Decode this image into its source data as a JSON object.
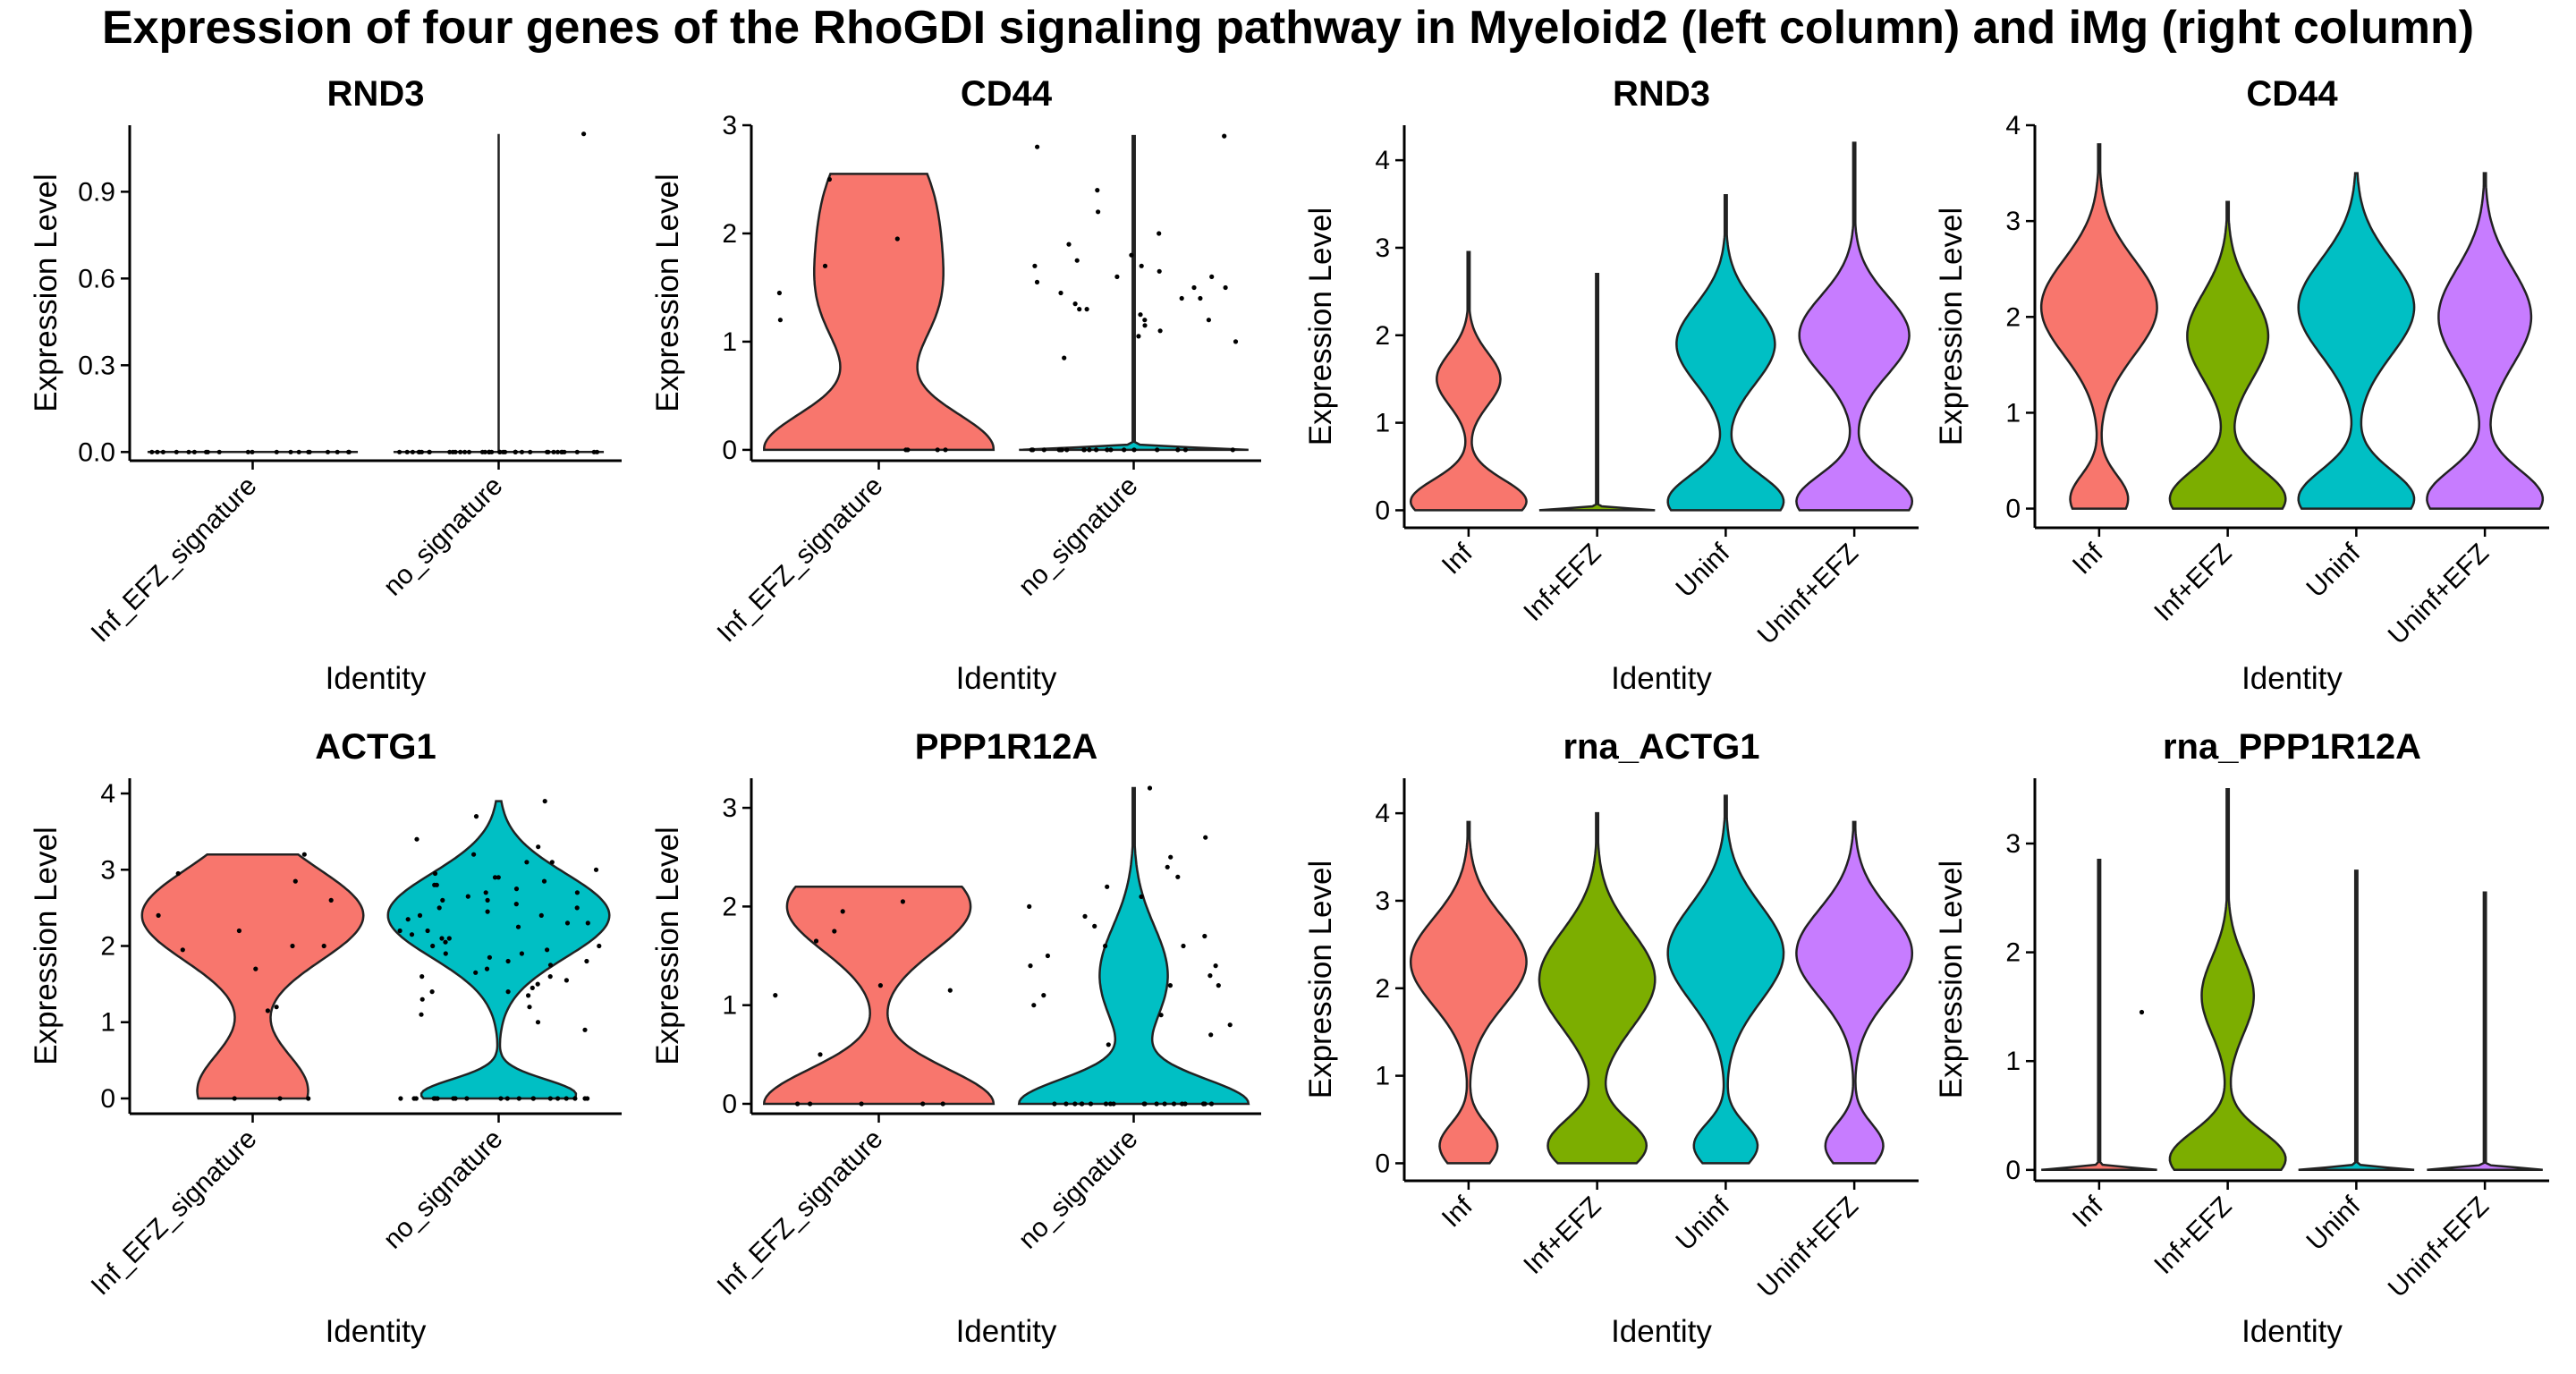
{
  "title": "Expression of four genes of the RhoGDI signaling pathway in Myeloid2 (left column) and iMg (right column)",
  "colors": {
    "Inf_EFZ_signature": "#F8766D",
    "no_signature": "#00BFC4",
    "Inf": "#F8766D",
    "Inf+EFZ": "#7CAE00",
    "Uninf": "#00BFC4",
    "Uninf+EFZ": "#C77CFF"
  },
  "chart_data": [
    {
      "type": "violin",
      "title": "RND3",
      "xlabel": "Identity",
      "ylabel": "Expression Level",
      "categories": [
        "Inf_EFZ_signature",
        "no_signature"
      ],
      "ylim": [
        -0.03,
        1.13
      ],
      "yticks": [
        "0.0",
        "0.3",
        "0.6",
        "0.9"
      ],
      "series": [
        {
          "category": "Inf_EFZ_signature",
          "max": 0,
          "modes": [],
          "points": [
            0,
            0,
            0,
            0,
            0,
            0,
            0,
            0,
            0,
            0,
            0,
            0,
            0,
            0,
            0,
            0,
            0,
            0,
            0,
            0
          ]
        },
        {
          "category": "no_signature",
          "max": 1.1,
          "modes": [],
          "points": [
            1.1,
            0,
            0,
            0,
            0,
            0,
            0,
            0,
            0,
            0,
            0,
            0,
            0,
            0,
            0,
            0,
            0,
            0,
            0,
            0,
            0,
            0,
            0,
            0,
            0,
            0,
            0,
            0,
            0,
            0,
            0,
            0,
            0,
            0,
            0,
            0,
            0,
            0,
            0,
            0
          ]
        }
      ]
    },
    {
      "type": "violin",
      "title": "CD44",
      "xlabel": "Identity",
      "ylabel": "Expression Level",
      "categories": [
        "Inf_EFZ_signature",
        "no_signature"
      ],
      "ylim": [
        -0.1,
        3.0
      ],
      "yticks": [
        "0",
        "1",
        "2",
        "3"
      ],
      "series": [
        {
          "category": "Inf_EFZ_signature",
          "max": 2.55,
          "flat_top": true,
          "modes": [
            [
              0,
              0.85,
              0.35
            ],
            [
              2.3,
              0.38,
              0.6
            ],
            [
              1.3,
              0.35,
              0.5
            ]
          ],
          "points": [
            2.5,
            1.95,
            1.45,
            1.2,
            0,
            0,
            0,
            0,
            1.7
          ]
        },
        {
          "category": "no_signature",
          "max": 2.9,
          "modes": [
            [
              0,
              1.0,
              0.02
            ]
          ],
          "points": [
            2.9,
            2.8,
            2.4,
            2.2,
            2.0,
            1.8,
            1.75,
            1.7,
            1.65,
            1.6,
            1.55,
            1.5,
            1.45,
            1.4,
            1.35,
            1.3,
            1.25,
            1.2,
            1.15,
            1.1,
            1.05,
            1.0,
            0.85,
            1.9,
            1.6,
            1.3,
            1.2,
            1.5,
            1.7,
            1.4,
            0,
            0,
            0,
            0,
            0,
            0,
            0,
            0,
            0,
            0,
            0,
            0,
            0,
            0,
            0,
            0,
            0,
            0,
            0,
            0
          ]
        }
      ]
    },
    {
      "type": "violin",
      "title": "RND3",
      "xlabel": "Identity",
      "ylabel": "Expression Level",
      "categories": [
        "Inf",
        "Inf+EFZ",
        "Uninf",
        "Uninf+EFZ"
      ],
      "ylim": [
        -0.2,
        4.4
      ],
      "yticks": [
        "0",
        "1",
        "2",
        "3",
        "4"
      ],
      "series": [
        {
          "category": "Inf",
          "max": 2.95,
          "modes": [
            [
              0.1,
              1.0,
              0.25
            ],
            [
              1.5,
              0.55,
              0.3
            ]
          ],
          "points": []
        },
        {
          "category": "Inf+EFZ",
          "max": 2.7,
          "modes": [
            [
              0,
              1.0,
              0.02
            ]
          ],
          "points": []
        },
        {
          "category": "Uninf",
          "max": 3.6,
          "modes": [
            [
              0.1,
              1.0,
              0.3
            ],
            [
              1.9,
              0.85,
              0.45
            ]
          ],
          "points": []
        },
        {
          "category": "Uninf+EFZ",
          "max": 4.2,
          "modes": [
            [
              0.1,
              1.0,
              0.3
            ],
            [
              2.0,
              0.95,
              0.45
            ]
          ],
          "points": []
        }
      ]
    },
    {
      "type": "violin",
      "title": "CD44",
      "xlabel": "Identity",
      "ylabel": "Expression Level",
      "categories": [
        "Inf",
        "Inf+EFZ",
        "Uninf",
        "Uninf+EFZ"
      ],
      "ylim": [
        -0.2,
        4.0
      ],
      "yticks": [
        "0",
        "1",
        "2",
        "3",
        "4"
      ],
      "series": [
        {
          "category": "Inf",
          "max": 3.8,
          "modes": [
            [
              0.1,
              0.5,
              0.25
            ],
            [
              2.1,
              1.0,
              0.5
            ]
          ],
          "points": []
        },
        {
          "category": "Inf+EFZ",
          "max": 3.2,
          "modes": [
            [
              0.1,
              1.0,
              0.3
            ],
            [
              1.8,
              0.7,
              0.45
            ]
          ],
          "points": []
        },
        {
          "category": "Uninf",
          "max": 3.5,
          "modes": [
            [
              0.1,
              1.0,
              0.3
            ],
            [
              2.1,
              1.0,
              0.5
            ]
          ],
          "points": []
        },
        {
          "category": "Uninf+EFZ",
          "max": 3.5,
          "modes": [
            [
              0.1,
              1.0,
              0.3
            ],
            [
              2.0,
              0.8,
              0.5
            ]
          ],
          "points": []
        }
      ]
    },
    {
      "type": "violin",
      "title": "ACTG1",
      "xlabel": "Identity",
      "ylabel": "Expression Level",
      "categories": [
        "Inf_EFZ_signature",
        "no_signature"
      ],
      "ylim": [
        -0.2,
        4.2
      ],
      "yticks": [
        "0",
        "1",
        "2",
        "3",
        "4"
      ],
      "series": [
        {
          "category": "Inf_EFZ_signature",
          "max": 3.2,
          "flat_top": true,
          "modes": [
            [
              2.4,
              1.0,
              0.6
            ],
            [
              0.1,
              0.5,
              0.5
            ]
          ],
          "points": [
            2.95,
            2.85,
            2.6,
            2.4,
            2.2,
            2.0,
            1.95,
            1.7,
            1.2,
            1.15,
            0,
            0,
            0,
            3.2,
            2.0
          ]
        },
        {
          "category": "no_signature",
          "max": 3.9,
          "modes": [
            [
              2.4,
              1.0,
              0.55
            ],
            [
              0.05,
              0.7,
              0.2
            ]
          ],
          "points": [
            3.9,
            3.7,
            3.4,
            3.3,
            3.2,
            3.1,
            3.0,
            2.95,
            2.9,
            2.85,
            2.8,
            2.75,
            2.7,
            2.65,
            2.6,
            2.55,
            2.5,
            2.45,
            2.4,
            2.35,
            2.3,
            2.25,
            2.2,
            2.15,
            2.1,
            2.05,
            2.0,
            1.95,
            1.9,
            1.85,
            1.8,
            1.75,
            1.7,
            1.65,
            1.6,
            1.55,
            1.5,
            1.45,
            1.4,
            1.35,
            1.3,
            1.2,
            1.1,
            1.0,
            0.9,
            2.6,
            2.4,
            2.2,
            2.0,
            1.8,
            2.5,
            2.3,
            2.1,
            1.9,
            2.7,
            2.9,
            3.1,
            1.6,
            1.4,
            2.8,
            0,
            0,
            0,
            0,
            0,
            0,
            0,
            0,
            0,
            0,
            0,
            0,
            0,
            0,
            0,
            0,
            0,
            0,
            0,
            0
          ]
        }
      ]
    },
    {
      "type": "violin",
      "title": "PPP1R12A",
      "xlabel": "Identity",
      "ylabel": "Expression Level",
      "categories": [
        "Inf_EFZ_signature",
        "no_signature"
      ],
      "ylim": [
        -0.1,
        3.3
      ],
      "yticks": [
        "0",
        "1",
        "2",
        "3"
      ],
      "series": [
        {
          "category": "Inf_EFZ_signature",
          "max": 2.2,
          "flat_top": true,
          "modes": [
            [
              0,
              1.0,
              0.35
            ],
            [
              2.0,
              0.8,
              0.45
            ]
          ],
          "points": [
            2.05,
            1.95,
            1.75,
            1.65,
            1.2,
            1.15,
            0.5,
            0,
            0,
            0,
            0,
            0,
            1.1
          ]
        },
        {
          "category": "no_signature",
          "max": 3.2,
          "modes": [
            [
              0,
              1.0,
              0.25
            ],
            [
              1.3,
              0.3,
              0.5
            ]
          ],
          "points": [
            3.2,
            2.7,
            2.5,
            2.3,
            2.2,
            2.1,
            2.0,
            1.9,
            1.8,
            1.7,
            1.6,
            1.5,
            1.4,
            1.3,
            1.2,
            1.1,
            1.0,
            0.9,
            0.8,
            0.7,
            1.6,
            1.4,
            1.2,
            2.4,
            0.6,
            0,
            0,
            0,
            0,
            0,
            0,
            0,
            0,
            0,
            0,
            0,
            0,
            0,
            0,
            0,
            0,
            0,
            0,
            0,
            0
          ]
        }
      ]
    },
    {
      "type": "violin",
      "title": "rna_ACTG1",
      "xlabel": "Identity",
      "ylabel": "Expression Level",
      "categories": [
        "Inf",
        "Inf+EFZ",
        "Uninf",
        "Uninf+EFZ"
      ],
      "ylim": [
        -0.2,
        4.4
      ],
      "yticks": [
        "0",
        "1",
        "2",
        "3",
        "4"
      ],
      "series": [
        {
          "category": "Inf",
          "max": 3.9,
          "modes": [
            [
              2.3,
              1.0,
              0.5
            ],
            [
              0.2,
              0.5,
              0.25
            ]
          ],
          "points": []
        },
        {
          "category": "Inf+EFZ",
          "max": 4.0,
          "modes": [
            [
              2.1,
              1.0,
              0.55
            ],
            [
              0.2,
              0.85,
              0.3
            ]
          ],
          "points": []
        },
        {
          "category": "Uninf",
          "max": 4.2,
          "modes": [
            [
              2.4,
              1.0,
              0.55
            ],
            [
              0.2,
              0.55,
              0.25
            ]
          ],
          "points": []
        },
        {
          "category": "Uninf+EFZ",
          "max": 3.9,
          "modes": [
            [
              2.4,
              1.0,
              0.5
            ],
            [
              0.2,
              0.5,
              0.25
            ]
          ],
          "points": []
        }
      ]
    },
    {
      "type": "violin",
      "title": "rna_PPP1R12A",
      "xlabel": "Identity",
      "ylabel": "Expression Level",
      "categories": [
        "Inf",
        "Inf+EFZ",
        "Uninf",
        "Uninf+EFZ"
      ],
      "ylim": [
        -0.1,
        3.6
      ],
      "yticks": [
        "0",
        "1",
        "2",
        "3"
      ],
      "series": [
        {
          "category": "Inf",
          "max": 2.85,
          "modes": [
            [
              0,
              1.0,
              0.02
            ]
          ],
          "points": [
            1.45
          ]
        },
        {
          "category": "Inf+EFZ",
          "max": 3.5,
          "modes": [
            [
              0.1,
              1.0,
              0.25
            ],
            [
              1.6,
              0.45,
              0.35
            ]
          ],
          "points": []
        },
        {
          "category": "Uninf",
          "max": 2.75,
          "modes": [
            [
              0,
              1.0,
              0.02
            ]
          ],
          "points": []
        },
        {
          "category": "Uninf+EFZ",
          "max": 2.55,
          "modes": [
            [
              0,
              1.0,
              0.02
            ]
          ],
          "points": []
        }
      ]
    }
  ]
}
